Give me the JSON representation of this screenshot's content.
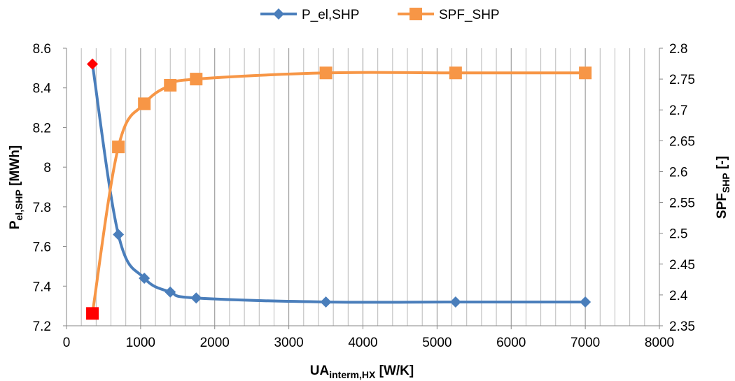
{
  "chart_data": {
    "type": "line",
    "title": "",
    "xlabel": {
      "main": "UA",
      "sub": "interm,HX",
      "unit": " [W/K]"
    },
    "ylabel_left": {
      "main": "P",
      "sub": "el,SHP",
      "unit": " [MWh]"
    },
    "ylabel_right": {
      "main": "SPF",
      "sub": "SHP",
      "unit": " [-]"
    },
    "xlim": [
      0,
      8000
    ],
    "xticks": [
      0,
      1000,
      2000,
      3000,
      4000,
      5000,
      6000,
      7000,
      8000
    ],
    "ylim_left": [
      7.2,
      8.6
    ],
    "yticks_left": [
      7.2,
      7.4,
      7.6,
      7.8,
      8.0,
      8.2,
      8.4,
      8.6
    ],
    "ytick_labels_left": [
      "7.2",
      "7.4",
      "7.6",
      "7.8",
      "8",
      "8.2",
      "8.4",
      "8.6"
    ],
    "ylim_right": [
      2.35,
      2.8
    ],
    "yticks_right": [
      2.35,
      2.4,
      2.45,
      2.5,
      2.55,
      2.6,
      2.65,
      2.7,
      2.75,
      2.8
    ],
    "ytick_labels_right": [
      "2.35",
      "2.4",
      "2.45",
      "2.5",
      "2.55",
      "2.6",
      "2.65",
      "2.7",
      "2.75",
      "2.8"
    ],
    "grid": "vertical",
    "legend": "top-center",
    "series": [
      {
        "name": "P_el,SHP",
        "axis": "left",
        "marker": "diamond",
        "color": "#4a7ebb",
        "highlight_first_color": "#ff0000",
        "x": [
          350,
          700,
          1050,
          1400,
          1750,
          3500,
          5250,
          7000
        ],
        "y": [
          8.52,
          7.66,
          7.44,
          7.37,
          7.34,
          7.32,
          7.32,
          7.32
        ]
      },
      {
        "name": "SPF_SHP",
        "axis": "right",
        "marker": "square",
        "color": "#f79646",
        "highlight_first_color": "#ff0000",
        "x": [
          350,
          700,
          1050,
          1400,
          1750,
          3500,
          5250,
          7000
        ],
        "y": [
          2.37,
          2.64,
          2.71,
          2.74,
          2.75,
          2.76,
          2.76,
          2.76
        ]
      }
    ]
  }
}
